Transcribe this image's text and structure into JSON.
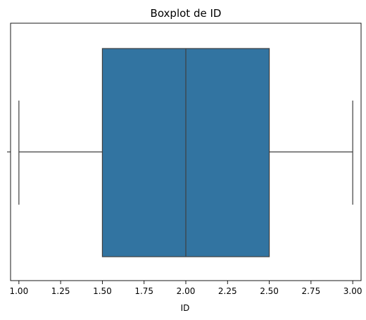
{
  "chart_data": {
    "type": "boxplot",
    "title": "Boxplot de ID",
    "xlabel": "ID",
    "ylabel": "",
    "orientation": "horizontal",
    "xlim": [
      0.95,
      3.05
    ],
    "xticks": [
      1.0,
      1.25,
      1.5,
      1.75,
      2.0,
      2.25,
      2.5,
      2.75,
      3.0
    ],
    "xtick_labels": [
      "1.00",
      "1.25",
      "1.50",
      "1.75",
      "2.00",
      "2.25",
      "2.50",
      "2.75",
      "3.00"
    ],
    "grid": false,
    "series": [
      {
        "min": 1.0,
        "q1": 1.5,
        "median": 2.0,
        "q3": 2.5,
        "max": 3.0,
        "color": "#3274a1"
      }
    ]
  }
}
